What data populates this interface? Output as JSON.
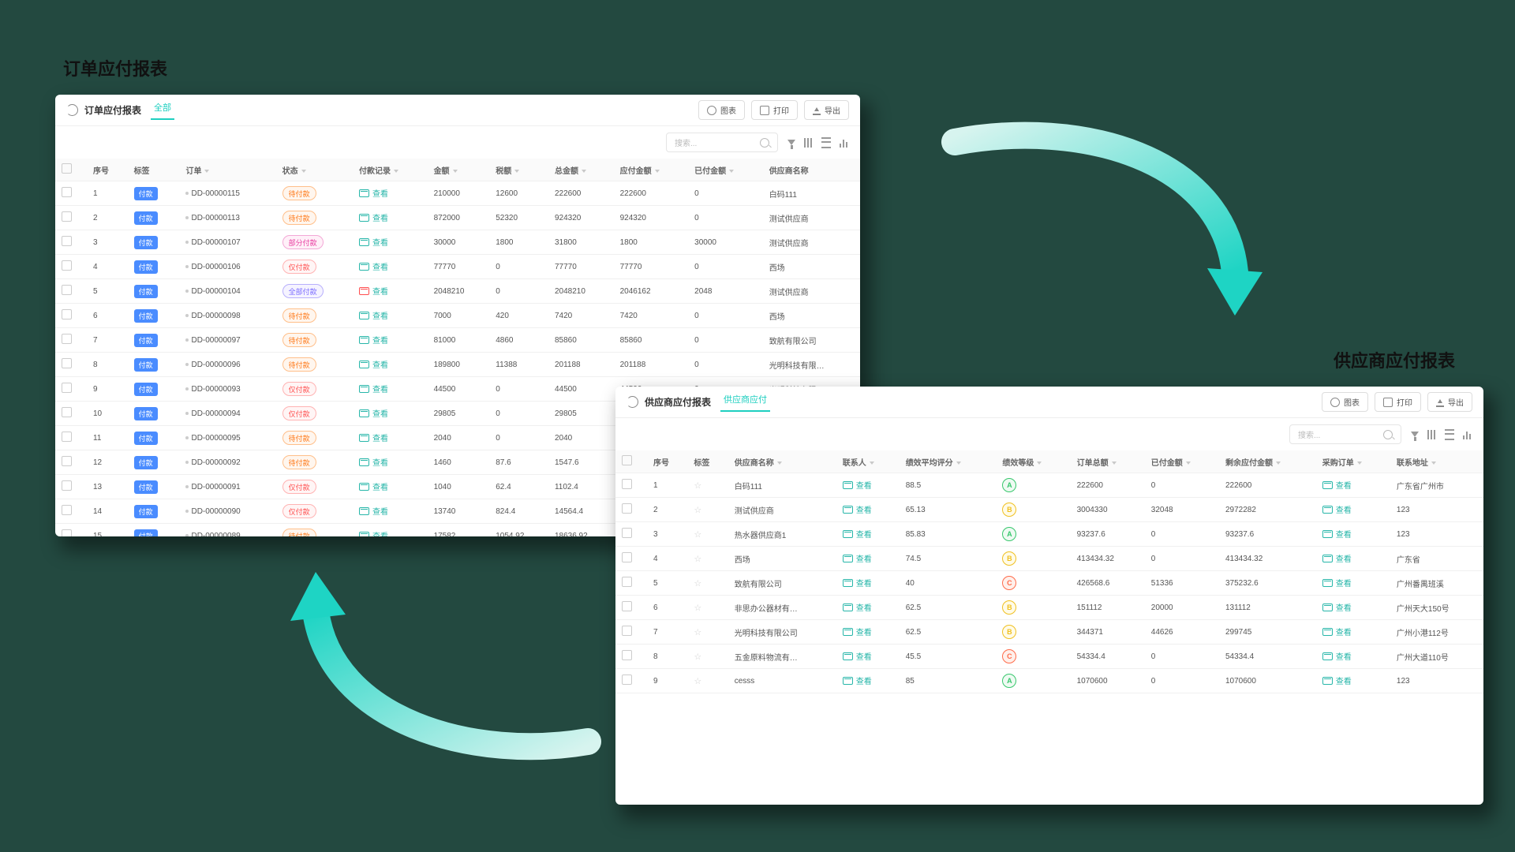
{
  "colors": {
    "background": "#234940",
    "panel_bg": "#ffffff",
    "accent": "#1ecfc0",
    "button_primary": "#4a8cff",
    "shadow": "rgba(0,0,0,0.45)",
    "arrow_start": "#1ed4c4",
    "arrow_end": "#3de1d2"
  },
  "section1": {
    "title": "订单应付报表"
  },
  "section2": {
    "title": "供应商应付报表"
  },
  "buttons": {
    "chart": "图表",
    "print": "打印",
    "export": "导出",
    "search_placeholder": "搜索..."
  },
  "panel1": {
    "title": "订单应付报表",
    "tab": "全部",
    "columns": [
      "序号",
      "标签",
      "订单",
      "状态",
      "付款记录",
      "金额",
      "税额",
      "总金额",
      "应付金额",
      "已付金额",
      "供应商名称"
    ],
    "status_styles": {
      "待付款": "s-wait",
      "部分付款": "s-part",
      "仅付款": "s-left",
      "全部付款": "s-all"
    },
    "rows": [
      {
        "n": 1,
        "order": "DD-00000115",
        "status": "待付款",
        "amt": "210000",
        "tax": "12600",
        "total": "222600",
        "due": "222600",
        "paid": "0",
        "sup": "白码111"
      },
      {
        "n": 2,
        "order": "DD-00000113",
        "status": "待付款",
        "amt": "872000",
        "tax": "52320",
        "total": "924320",
        "due": "924320",
        "paid": "0",
        "sup": "测试供应商"
      },
      {
        "n": 3,
        "order": "DD-00000107",
        "status": "部分付款",
        "amt": "30000",
        "tax": "1800",
        "total": "31800",
        "due": "1800",
        "paid": "30000",
        "sup": "测试供应商"
      },
      {
        "n": 4,
        "order": "DD-00000106",
        "status": "仅付款",
        "amt": "77770",
        "tax": "0",
        "total": "77770",
        "due": "77770",
        "paid": "0",
        "sup": "西场"
      },
      {
        "n": 5,
        "order": "DD-00000104",
        "status": "全部付款",
        "amt": "2048210",
        "tax": "0",
        "total": "2048210",
        "due": "2046162",
        "paid": "2048",
        "sup": "测试供应商"
      },
      {
        "n": 6,
        "order": "DD-00000098",
        "status": "待付款",
        "amt": "7000",
        "tax": "420",
        "total": "7420",
        "due": "7420",
        "paid": "0",
        "sup": "西场"
      },
      {
        "n": 7,
        "order": "DD-00000097",
        "status": "待付款",
        "amt": "81000",
        "tax": "4860",
        "total": "85860",
        "due": "85860",
        "paid": "0",
        "sup": "致航有限公司"
      },
      {
        "n": 8,
        "order": "DD-00000096",
        "status": "待付款",
        "amt": "189800",
        "tax": "11388",
        "total": "201188",
        "due": "201188",
        "paid": "0",
        "sup": "光明科技有限…"
      },
      {
        "n": 9,
        "order": "DD-00000093",
        "status": "仅付款",
        "amt": "44500",
        "tax": "0",
        "total": "44500",
        "due": "44500",
        "paid": "0",
        "sup": "光明科技有限…"
      },
      {
        "n": 10,
        "order": "DD-00000094",
        "status": "仅付款",
        "amt": "29805",
        "tax": "0",
        "total": "29805",
        "due": "29805",
        "paid": "0",
        "sup": "致航有限公司"
      },
      {
        "n": 11,
        "order": "DD-00000095",
        "status": "待付款",
        "amt": "2040",
        "tax": "0",
        "total": "2040",
        "due": "",
        "paid": "",
        "sup": ""
      },
      {
        "n": 12,
        "order": "DD-00000092",
        "status": "待付款",
        "amt": "1460",
        "tax": "87.6",
        "total": "1547.6",
        "due": "",
        "paid": "",
        "sup": ""
      },
      {
        "n": 13,
        "order": "DD-00000091",
        "status": "仅付款",
        "amt": "1040",
        "tax": "62.4",
        "total": "1102.4",
        "due": "",
        "paid": "",
        "sup": ""
      },
      {
        "n": 14,
        "order": "DD-00000090",
        "status": "仅付款",
        "amt": "13740",
        "tax": "824.4",
        "total": "14564.4",
        "due": "",
        "paid": "",
        "sup": ""
      },
      {
        "n": 15,
        "order": "DD-00000089",
        "status": "待付款",
        "amt": "17582",
        "tax": "1054.92",
        "total": "18636.92",
        "due": "",
        "paid": "",
        "sup": ""
      }
    ]
  },
  "panel2": {
    "title": "供应商应付报表",
    "tab": "供应商应付",
    "columns": [
      "序号",
      "标签",
      "供应商名称",
      "联系人",
      "绩效平均评分",
      "绩效等级",
      "订单总额",
      "已付金额",
      "剩余应付金额",
      "采购订单",
      "联系地址"
    ],
    "rows": [
      {
        "n": 1,
        "name": "白码111",
        "score": "88.5",
        "grade": "A",
        "total": "222600",
        "paid": "0",
        "remain": "222600",
        "addr": "广东省广州市"
      },
      {
        "n": 2,
        "name": "测试供应商",
        "score": "65.13",
        "grade": "B",
        "total": "3004330",
        "paid": "32048",
        "remain": "2972282",
        "addr": "123"
      },
      {
        "n": 3,
        "name": "热水器供应商1",
        "score": "85.83",
        "grade": "A",
        "total": "93237.6",
        "paid": "0",
        "remain": "93237.6",
        "addr": "123"
      },
      {
        "n": 4,
        "name": "西场",
        "score": "74.5",
        "grade": "B",
        "total": "413434.32",
        "paid": "0",
        "remain": "413434.32",
        "addr": "广东省"
      },
      {
        "n": 5,
        "name": "致航有限公司",
        "score": "40",
        "grade": "C",
        "total": "426568.6",
        "paid": "51336",
        "remain": "375232.6",
        "addr": "广州番禺班溪"
      },
      {
        "n": 6,
        "name": "非思办公器材有…",
        "score": "62.5",
        "grade": "B",
        "total": "151112",
        "paid": "20000",
        "remain": "131112",
        "addr": "广州天大150号"
      },
      {
        "n": 7,
        "name": "光明科技有限公司",
        "score": "62.5",
        "grade": "B",
        "total": "344371",
        "paid": "44626",
        "remain": "299745",
        "addr": "广州小港112号"
      },
      {
        "n": 8,
        "name": "五金原料物流有…",
        "score": "45.5",
        "grade": "C",
        "total": "54334.4",
        "paid": "0",
        "remain": "54334.4",
        "addr": "广州大道110号"
      },
      {
        "n": 9,
        "name": "cesss",
        "score": "85",
        "grade": "A",
        "total": "1070600",
        "paid": "0",
        "remain": "1070600",
        "addr": "123"
      }
    ]
  },
  "common": {
    "pay_tag": "付款",
    "view_link": "查看"
  }
}
